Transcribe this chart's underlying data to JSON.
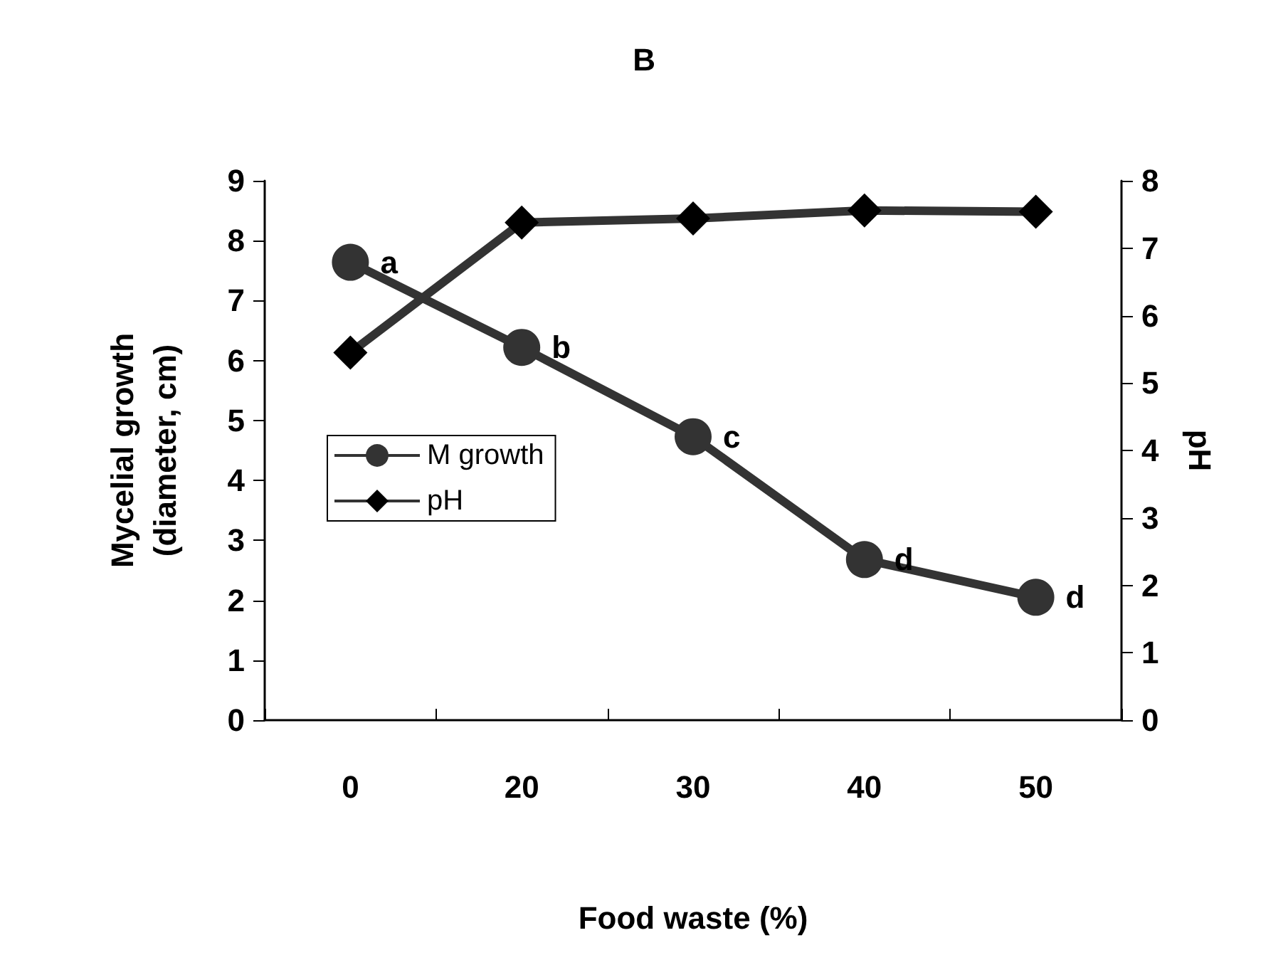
{
  "chart_data": {
    "type": "line",
    "title": "B",
    "xlabel": "Food waste (%)",
    "ylabel": "Mycelial growth\n(diameter, cm)",
    "y2label": "pH",
    "categories": [
      "0",
      "20",
      "30",
      "40",
      "50"
    ],
    "series": [
      {
        "name": "M growth",
        "color": "#333333",
        "marker": "circle",
        "values": [
          7.64,
          6.22,
          4.73,
          2.68,
          2.05
        ],
        "value_labels": [
          "a",
          "b",
          "c",
          "d",
          "d"
        ]
      },
      {
        "name": "pH",
        "color": "#333333",
        "marker": "diamond",
        "axis": "y2",
        "values": [
          5.45,
          7.38,
          7.44,
          7.56,
          7.54
        ]
      }
    ],
    "ylim": [
      0,
      9
    ],
    "yticks": [
      0,
      1,
      2,
      3,
      4,
      5,
      6,
      7,
      8,
      9
    ],
    "y2lim": [
      0,
      8
    ],
    "y2ticks": [
      0,
      1,
      2,
      3,
      4,
      5,
      6,
      7,
      8
    ],
    "grid": false,
    "legend": "left"
  }
}
